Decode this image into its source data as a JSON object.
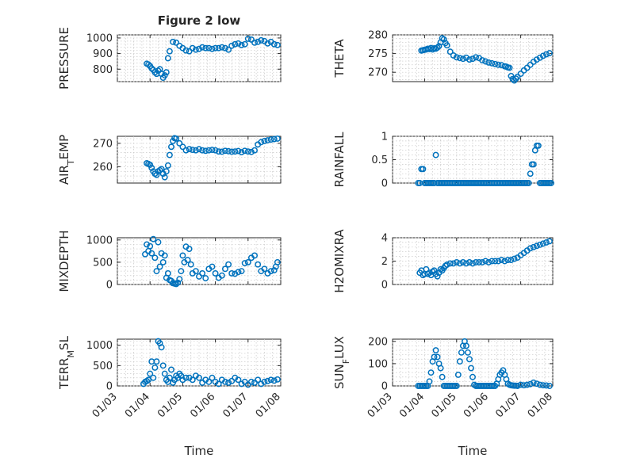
{
  "chart_data": [
    {
      "type": "scatter",
      "title": "Figure 2 low",
      "ylabel": "PRESSURE",
      "xlabel": "",
      "xlim": [
        "01/03",
        "01/08"
      ],
      "ylim": [
        720,
        1020
      ],
      "yticks": [
        800,
        900,
        1000
      ],
      "grid": true,
      "marker": "circle",
      "color": "#0072BD",
      "x": [
        3.9,
        3.95,
        4.0,
        4.05,
        4.1,
        4.15,
        4.2,
        4.25,
        4.3,
        4.35,
        4.4,
        4.45,
        4.5,
        4.55,
        4.6,
        4.7,
        4.8,
        4.9,
        5.0,
        5.1,
        5.2,
        5.3,
        5.4,
        5.5,
        5.6,
        5.7,
        5.8,
        5.9,
        6.0,
        6.1,
        6.2,
        6.3,
        6.4,
        6.5,
        6.6,
        6.7,
        6.8,
        6.9,
        7.0,
        7.1,
        7.2,
        7.3,
        7.4,
        7.5,
        7.6,
        7.7,
        7.8,
        7.9
      ],
      "y": [
        835,
        830,
        820,
        805,
        795,
        780,
        770,
        790,
        800,
        770,
        745,
        760,
        780,
        870,
        915,
        975,
        970,
        950,
        935,
        920,
        915,
        935,
        925,
        930,
        940,
        935,
        935,
        930,
        935,
        935,
        940,
        935,
        925,
        950,
        960,
        965,
        955,
        960,
        995,
        990,
        970,
        975,
        985,
        980,
        965,
        975,
        960,
        955
      ]
    },
    {
      "type": "scatter",
      "ylabel": "THETA",
      "xlabel": "",
      "xlim": [
        "01/03",
        "01/08"
      ],
      "ylim": [
        267.5,
        280
      ],
      "yticks": [
        270,
        275,
        280
      ],
      "grid": true,
      "marker": "circle",
      "color": "#0072BD",
      "x": [
        3.9,
        3.95,
        4.0,
        4.05,
        4.1,
        4.15,
        4.2,
        4.25,
        4.3,
        4.35,
        4.4,
        4.45,
        4.5,
        4.55,
        4.6,
        4.65,
        4.7,
        4.8,
        4.9,
        5.0,
        5.1,
        5.2,
        5.3,
        5.4,
        5.5,
        5.6,
        5.7,
        5.8,
        5.9,
        6.0,
        6.1,
        6.2,
        6.3,
        6.4,
        6.5,
        6.55,
        6.6,
        6.65,
        6.7,
        6.75,
        6.8,
        6.85,
        6.9,
        7.0,
        7.1,
        7.2,
        7.3,
        7.4,
        7.5,
        7.6,
        7.7,
        7.8,
        7.9
      ],
      "y": [
        275.8,
        275.9,
        276.0,
        276.1,
        276.3,
        276.2,
        276.5,
        276.1,
        276.4,
        276.3,
        276.6,
        277.0,
        278.0,
        279.1,
        278.8,
        277.8,
        277.2,
        275.5,
        274.5,
        274.0,
        273.8,
        273.6,
        273.9,
        273.4,
        273.6,
        274.0,
        273.8,
        273.2,
        272.9,
        272.6,
        272.4,
        272.2,
        272.0,
        271.9,
        271.6,
        271.5,
        271.3,
        271.2,
        269.0,
        268.2,
        267.8,
        268.3,
        268.8,
        269.6,
        270.5,
        271.2,
        272.0,
        272.8,
        273.4,
        273.9,
        274.4,
        274.8,
        275.1
      ]
    },
    {
      "type": "scatter",
      "ylabel": "AIR_TEMP",
      "xlabel": "",
      "xlim": [
        "01/03",
        "01/08"
      ],
      "ylim": [
        253,
        273
      ],
      "yticks": [
        260,
        270
      ],
      "grid": true,
      "marker": "circle",
      "color": "#0072BD",
      "x": [
        3.9,
        3.95,
        4.0,
        4.05,
        4.1,
        4.15,
        4.2,
        4.25,
        4.3,
        4.35,
        4.4,
        4.45,
        4.5,
        4.55,
        4.6,
        4.65,
        4.7,
        4.75,
        4.8,
        4.9,
        5.0,
        5.1,
        5.2,
        5.3,
        5.4,
        5.5,
        5.6,
        5.7,
        5.8,
        5.9,
        6.0,
        6.1,
        6.2,
        6.3,
        6.4,
        6.5,
        6.6,
        6.7,
        6.8,
        6.9,
        7.0,
        7.1,
        7.2,
        7.3,
        7.4,
        7.5,
        7.6,
        7.7,
        7.8,
        7.9
      ],
      "y": [
        261.5,
        261.2,
        260.8,
        259.5,
        258.0,
        257.0,
        256.5,
        258.0,
        258.5,
        259.0,
        257.0,
        255.5,
        258.0,
        260.5,
        265.0,
        268.5,
        271.0,
        272.2,
        272.0,
        270.0,
        268.5,
        267.0,
        267.5,
        267.2,
        267.0,
        267.5,
        267.0,
        266.8,
        267.0,
        267.2,
        267.0,
        266.5,
        266.4,
        266.8,
        266.6,
        266.4,
        266.5,
        266.7,
        266.2,
        266.8,
        266.5,
        266.3,
        267.0,
        269.5,
        270.5,
        271.0,
        271.3,
        271.6,
        271.8,
        272.0
      ]
    },
    {
      "type": "scatter",
      "ylabel": "RAINFALL",
      "xlabel": "",
      "xlim": [
        "01/03",
        "01/08"
      ],
      "ylim": [
        0,
        1
      ],
      "yticks": [
        0,
        0.5,
        1
      ],
      "yticklabels": [
        "0",
        "0.5",
        "1"
      ],
      "grid": true,
      "marker": "circle",
      "color": "#0072BD",
      "x": [
        3.8,
        3.85,
        3.9,
        3.95,
        4.0,
        4.05,
        4.1,
        4.15,
        4.2,
        4.25,
        4.3,
        4.35,
        4.4,
        4.45,
        4.5,
        4.55,
        4.6,
        4.65,
        4.7,
        4.75,
        4.8,
        4.85,
        4.9,
        4.95,
        5.0,
        5.05,
        5.1,
        5.15,
        5.2,
        5.25,
        5.3,
        5.35,
        5.4,
        5.45,
        5.5,
        5.55,
        5.6,
        5.65,
        5.7,
        5.75,
        5.8,
        5.85,
        5.9,
        5.95,
        6.0,
        6.05,
        6.1,
        6.15,
        6.2,
        6.25,
        6.3,
        6.35,
        6.4,
        6.45,
        6.5,
        6.55,
        6.6,
        6.65,
        6.7,
        6.75,
        6.8,
        6.85,
        6.9,
        6.95,
        7.0,
        7.05,
        7.1,
        7.15,
        7.2,
        7.25,
        7.3,
        7.35,
        7.4,
        7.45,
        7.5,
        7.55,
        7.6,
        7.65,
        7.7,
        7.75,
        7.8,
        7.85,
        7.9,
        7.95
      ],
      "y": [
        0,
        0,
        0.3,
        0.3,
        0,
        0,
        0,
        0,
        0,
        0,
        0,
        0.6,
        0,
        0,
        0,
        0,
        0,
        0,
        0,
        0,
        0,
        0,
        0,
        0,
        0,
        0,
        0,
        0,
        0,
        0,
        0,
        0,
        0,
        0,
        0,
        0,
        0,
        0,
        0,
        0,
        0,
        0,
        0,
        0,
        0,
        0,
        0,
        0,
        0,
        0,
        0,
        0,
        0,
        0,
        0,
        0,
        0,
        0,
        0,
        0,
        0,
        0,
        0,
        0,
        0,
        0,
        0,
        0,
        0,
        0,
        0.2,
        0.4,
        0.4,
        0.7,
        0.8,
        0.8,
        0,
        0,
        0,
        0,
        0,
        0,
        0,
        0
      ]
    },
    {
      "type": "scatter",
      "ylabel": "MIXDEPTH",
      "xlabel": "",
      "xlim": [
        "01/03",
        "01/08"
      ],
      "ylim": [
        0,
        1050
      ],
      "yticks": [
        0,
        500,
        1000
      ],
      "grid": true,
      "marker": "circle",
      "color": "#0072BD",
      "x": [
        3.85,
        3.9,
        3.95,
        4.0,
        4.05,
        4.1,
        4.15,
        4.2,
        4.25,
        4.3,
        4.35,
        4.4,
        4.45,
        4.5,
        4.55,
        4.6,
        4.65,
        4.7,
        4.75,
        4.8,
        4.85,
        4.9,
        4.95,
        5.0,
        5.05,
        5.1,
        5.15,
        5.2,
        5.25,
        5.3,
        5.4,
        5.5,
        5.6,
        5.7,
        5.8,
        5.9,
        6.0,
        6.1,
        6.2,
        6.3,
        6.4,
        6.5,
        6.6,
        6.7,
        6.8,
        6.9,
        7.0,
        7.1,
        7.2,
        7.3,
        7.4,
        7.5,
        7.6,
        7.7,
        7.8,
        7.85,
        7.9
      ],
      "y": [
        680,
        900,
        750,
        860,
        700,
        1020,
        600,
        300,
        950,
        400,
        700,
        500,
        650,
        150,
        250,
        100,
        80,
        30,
        20,
        10,
        40,
        120,
        300,
        650,
        500,
        850,
        550,
        800,
        450,
        250,
        300,
        180,
        250,
        140,
        350,
        400,
        250,
        150,
        200,
        350,
        450,
        250,
        240,
        280,
        300,
        480,
        500,
        600,
        650,
        450,
        300,
        350,
        250,
        300,
        320,
        400,
        500
      ]
    },
    {
      "type": "scatter",
      "ylabel": "H2OMIXRA",
      "xlabel": "",
      "xlim": [
        "01/03",
        "01/08"
      ],
      "ylim": [
        0,
        4
      ],
      "yticks": [
        0,
        2,
        4
      ],
      "grid": true,
      "marker": "circle",
      "color": "#0072BD",
      "x": [
        3.85,
        3.9,
        3.95,
        4.0,
        4.05,
        4.1,
        4.15,
        4.2,
        4.25,
        4.3,
        4.35,
        4.4,
        4.45,
        4.5,
        4.55,
        4.6,
        4.65,
        4.7,
        4.8,
        4.9,
        5.0,
        5.1,
        5.2,
        5.3,
        5.4,
        5.5,
        5.6,
        5.7,
        5.8,
        5.9,
        6.0,
        6.1,
        6.2,
        6.3,
        6.4,
        6.5,
        6.6,
        6.7,
        6.8,
        6.9,
        7.0,
        7.1,
        7.2,
        7.3,
        7.4,
        7.5,
        7.6,
        7.7,
        7.8,
        7.9
      ],
      "y": [
        1.0,
        1.2,
        0.8,
        0.9,
        1.3,
        0.9,
        1.0,
        0.8,
        1.1,
        1.2,
        0.9,
        0.7,
        1.0,
        1.3,
        1.2,
        1.4,
        1.6,
        1.7,
        1.8,
        1.8,
        1.9,
        1.8,
        1.9,
        1.8,
        1.9,
        1.8,
        1.9,
        1.9,
        1.9,
        2.0,
        1.9,
        2.0,
        2.0,
        2.0,
        2.1,
        2.0,
        2.1,
        2.1,
        2.2,
        2.3,
        2.5,
        2.7,
        2.9,
        3.1,
        3.2,
        3.3,
        3.4,
        3.5,
        3.6,
        3.7
      ]
    },
    {
      "type": "scatter",
      "ylabel": "TERR_MSL",
      "xlabel": "Time",
      "xlim": [
        "01/03",
        "01/08"
      ],
      "ylim": [
        0,
        1150
      ],
      "yticks": [
        0,
        500,
        1000
      ],
      "xticklabels": [
        "01/03",
        "01/04",
        "01/05",
        "01/06",
        "01/07",
        "01/08"
      ],
      "grid": true,
      "marker": "circle",
      "color": "#0072BD",
      "x": [
        3.8,
        3.85,
        3.9,
        3.95,
        4.0,
        4.05,
        4.1,
        4.15,
        4.2,
        4.25,
        4.3,
        4.35,
        4.4,
        4.45,
        4.5,
        4.55,
        4.6,
        4.65,
        4.7,
        4.75,
        4.8,
        4.85,
        4.9,
        4.95,
        5.0,
        5.1,
        5.2,
        5.3,
        5.4,
        5.5,
        5.6,
        5.7,
        5.8,
        5.9,
        6.0,
        6.1,
        6.2,
        6.3,
        6.4,
        6.5,
        6.6,
        6.7,
        6.8,
        6.9,
        7.0,
        7.1,
        7.2,
        7.3,
        7.4,
        7.5,
        7.6,
        7.7,
        7.8,
        7.9
      ],
      "y": [
        50,
        100,
        120,
        150,
        300,
        600,
        200,
        450,
        600,
        1100,
        1050,
        950,
        500,
        300,
        150,
        100,
        200,
        400,
        80,
        150,
        250,
        200,
        300,
        250,
        150,
        200,
        200,
        150,
        250,
        200,
        80,
        150,
        100,
        200,
        100,
        50,
        150,
        100,
        80,
        120,
        200,
        150,
        50,
        100,
        30,
        100,
        80,
        150,
        50,
        100,
        120,
        150,
        130,
        160
      ]
    },
    {
      "type": "scatter",
      "ylabel": "SUN_FLUX",
      "xlabel": "Time",
      "xlim": [
        "01/03",
        "01/08"
      ],
      "ylim": [
        0,
        210
      ],
      "yticks": [
        0,
        100,
        200
      ],
      "xticklabels": [
        "01/03",
        "01/04",
        "01/05",
        "01/06",
        "01/07",
        "01/08"
      ],
      "grid": true,
      "marker": "circle",
      "color": "#0072BD",
      "x": [
        3.8,
        3.85,
        3.9,
        3.95,
        4.0,
        4.05,
        4.1,
        4.15,
        4.2,
        4.25,
        4.3,
        4.35,
        4.4,
        4.45,
        4.5,
        4.55,
        4.6,
        4.65,
        4.7,
        4.75,
        4.8,
        4.85,
        4.9,
        4.95,
        5.0,
        5.05,
        5.1,
        5.15,
        5.2,
        5.25,
        5.3,
        5.35,
        5.4,
        5.45,
        5.5,
        5.55,
        5.6,
        5.65,
        5.7,
        5.75,
        5.8,
        5.85,
        5.9,
        5.95,
        6.0,
        6.05,
        6.1,
        6.15,
        6.2,
        6.25,
        6.3,
        6.35,
        6.4,
        6.45,
        6.5,
        6.55,
        6.6,
        6.65,
        6.7,
        6.75,
        6.8,
        6.85,
        6.9,
        7.0,
        7.1,
        7.2,
        7.3,
        7.4,
        7.5,
        7.6,
        7.7,
        7.8,
        7.9
      ],
      "y": [
        0,
        0,
        0,
        0,
        0,
        0,
        0,
        20,
        60,
        110,
        130,
        160,
        130,
        100,
        80,
        40,
        0,
        0,
        0,
        0,
        0,
        0,
        0,
        0,
        0,
        50,
        110,
        150,
        180,
        200,
        180,
        150,
        120,
        80,
        40,
        5,
        0,
        0,
        0,
        0,
        0,
        0,
        0,
        0,
        0,
        0,
        0,
        0,
        0,
        10,
        30,
        50,
        60,
        70,
        50,
        30,
        10,
        5,
        3,
        2,
        1,
        1,
        0,
        5,
        3,
        5,
        8,
        15,
        10,
        5,
        3,
        2,
        0
      ]
    }
  ]
}
